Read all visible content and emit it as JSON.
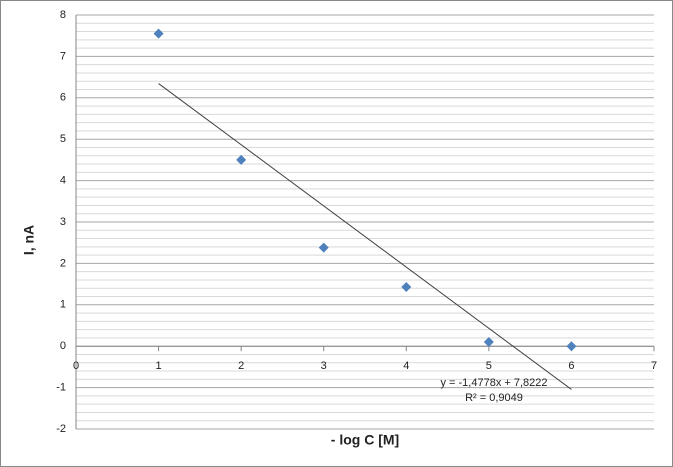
{
  "chart_data": {
    "type": "scatter",
    "x_label": "- log C [M]",
    "y_label": "I, nA",
    "series": [
      {
        "color": "#4f81bd",
        "x": [
          1,
          2,
          3,
          4,
          5,
          6
        ],
        "values": [
          7.55,
          4.5,
          2.38,
          1.43,
          0.1,
          0.0
        ]
      }
    ],
    "xlim": [
      0,
      7
    ],
    "xticks": [
      0,
      1,
      2,
      3,
      4,
      5,
      6,
      7
    ],
    "ylim": [
      -2,
      8
    ],
    "yticks": [
      -2,
      -1,
      0,
      1,
      2,
      3,
      4,
      5,
      6,
      7,
      8
    ],
    "grid": true,
    "trendline": {
      "slope": -1.4778,
      "intercept": 7.8222,
      "color": "#404040",
      "equation": "y = -1,4778x + 7,8222",
      "r_squared": "R² = 0,9049"
    }
  }
}
